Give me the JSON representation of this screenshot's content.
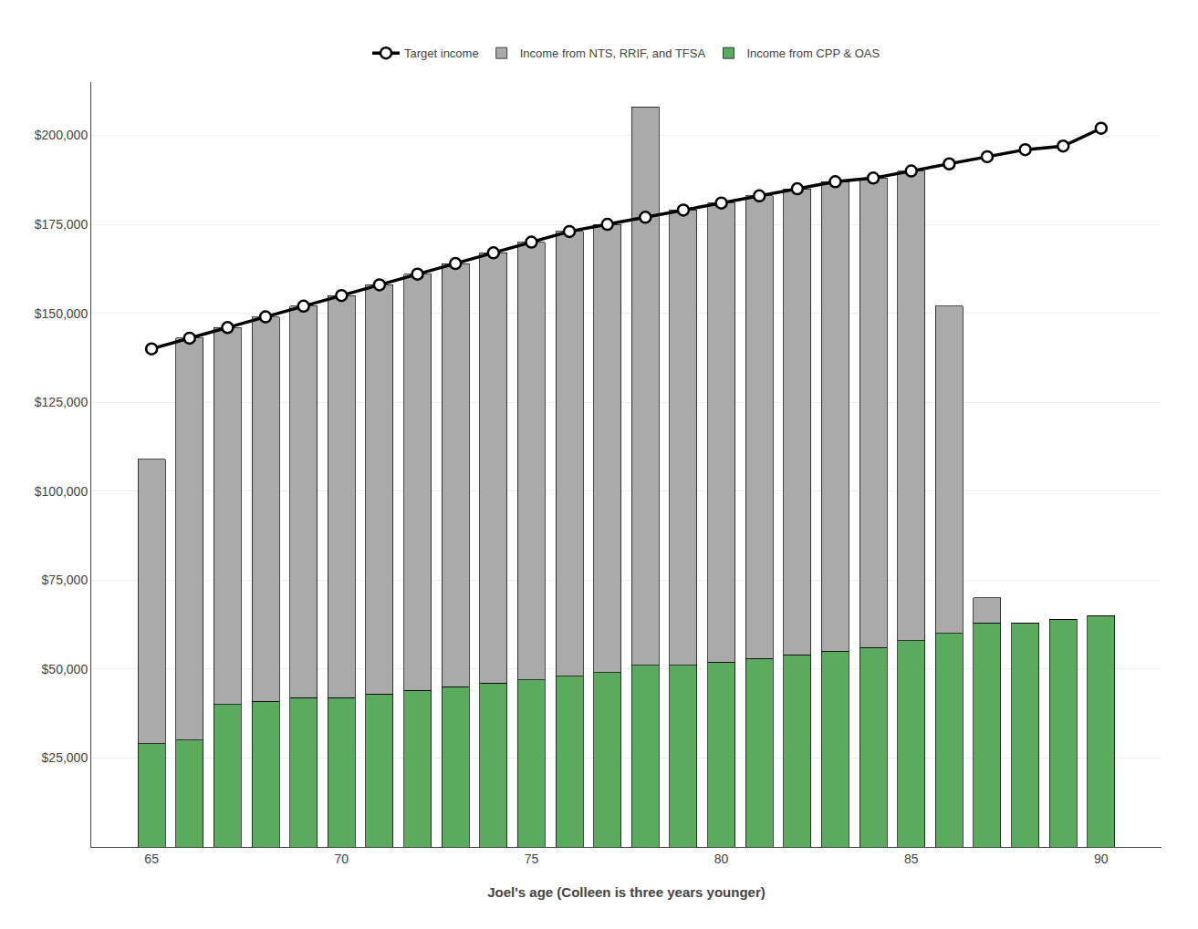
{
  "chart_data": {
    "type": "bar",
    "stacked": true,
    "xlabel": "Joel's age (Colleen is three years younger)",
    "categories": [
      "65",
      null,
      null,
      null,
      null,
      "70",
      null,
      null,
      null,
      null,
      "75",
      null,
      null,
      null,
      null,
      "80",
      null,
      null,
      null,
      null,
      "85",
      null,
      null,
      null,
      null,
      "90"
    ],
    "series": [
      {
        "name": "Income from CPP & OAS",
        "type": "bar",
        "color": "#5aab5e",
        "values": [
          29000,
          30000,
          40000,
          41000,
          42000,
          42000,
          43000,
          44000,
          45000,
          46000,
          47000,
          48000,
          49000,
          51000,
          51000,
          52000,
          53000,
          54000,
          55000,
          56000,
          58000,
          60000,
          63000,
          63000,
          64000,
          65000
        ]
      },
      {
        "name": "Income from NTS, RRIF, and TFSA",
        "type": "bar",
        "color": "#aaaaaa",
        "values": [
          80000,
          113000,
          106000,
          108000,
          110000,
          113000,
          115000,
          117000,
          119000,
          121000,
          123000,
          125000,
          126000,
          157000,
          128000,
          129000,
          130000,
          131000,
          132000,
          132000,
          132000,
          92000,
          7000,
          0,
          0,
          0
        ]
      },
      {
        "name": "Target income",
        "type": "line",
        "color": "#000000",
        "marker": "circle",
        "values": [
          140000,
          143000,
          146000,
          149000,
          152000,
          155000,
          158000,
          161000,
          164000,
          167000,
          170000,
          173000,
          175000,
          177000,
          179000,
          181000,
          183000,
          185000,
          187000,
          188000,
          190000,
          192000,
          194000,
          196000,
          197000,
          202000
        ]
      }
    ],
    "ylim": [
      0,
      215000
    ],
    "yticks": [
      {
        "value": 25000,
        "label": "$25,000"
      },
      {
        "value": 50000,
        "label": "$50,000"
      },
      {
        "value": 75000,
        "label": "$75,000"
      },
      {
        "value": 100000,
        "label": "$100,000"
      },
      {
        "value": 125000,
        "label": "$125,000"
      },
      {
        "value": 150000,
        "label": "$150,000"
      },
      {
        "value": 175000,
        "label": "$175,000"
      },
      {
        "value": 200000,
        "label": "$200,000"
      }
    ],
    "grid": true,
    "legend": "top"
  }
}
